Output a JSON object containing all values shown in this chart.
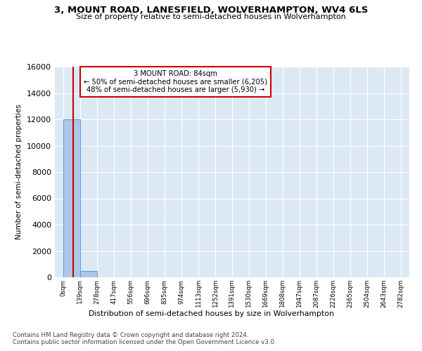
{
  "title": "3, MOUNT ROAD, LANESFIELD, WOLVERHAMPTON, WV4 6LS",
  "subtitle": "Size of property relative to semi-detached houses in Wolverhampton",
  "xlabel": "Distribution of semi-detached houses by size in Wolverhampton",
  "ylabel": "Number of semi-detached properties",
  "property_size": 84,
  "annotation_line1": "3 MOUNT ROAD: 84sqm",
  "annotation_line2": "← 50% of semi-detached houses are smaller (6,205)",
  "annotation_line3": "48% of semi-detached houses are larger (5,930) →",
  "bin_edges": [
    0,
    139,
    278,
    417,
    556,
    696,
    835,
    974,
    1113,
    1252,
    1391,
    1530,
    1669,
    1808,
    1947,
    2087,
    2226,
    2365,
    2504,
    2643,
    2782
  ],
  "bar_heights": [
    12000,
    500,
    0,
    0,
    0,
    0,
    0,
    0,
    0,
    0,
    0,
    0,
    0,
    0,
    0,
    0,
    0,
    0,
    0,
    0
  ],
  "bar_color": "#aec6e8",
  "bar_edge_color": "#5b9bd5",
  "property_line_color": "#cc0000",
  "annotation_box_color": "#cc0000",
  "ylim": [
    0,
    16000
  ],
  "yticks": [
    0,
    2000,
    4000,
    6000,
    8000,
    10000,
    12000,
    14000,
    16000
  ],
  "plot_background": "#dce9f5",
  "footer_line1": "Contains HM Land Registry data © Crown copyright and database right 2024.",
  "footer_line2": "Contains public sector information licensed under the Open Government Licence v3.0."
}
